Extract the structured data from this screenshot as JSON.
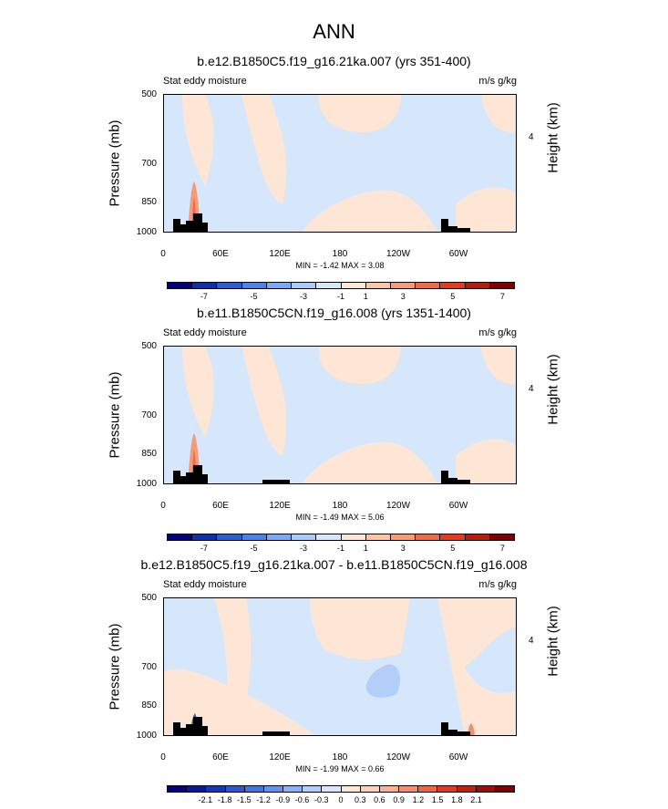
{
  "main_title": "ANN",
  "chart_data": [
    {
      "type": "heatmap",
      "title": "b.e12.B1850C5.f19_g16.21ka.007 (yrs 351-400)",
      "left_subtitle": "Stat eddy moisture",
      "right_subtitle": "m/s g/kg",
      "ylabel": "Pressure (mb)",
      "ylabel_right": "Height (km)",
      "yticks": [
        "500",
        "700",
        "850",
        "1000"
      ],
      "yticks_right": [
        "4"
      ],
      "xticks": [
        "0",
        "60E",
        "120E",
        "180",
        "120W",
        "60W"
      ],
      "stats": "MIN = -1.42  MAX = 3.08",
      "colorbar_labels": [
        "-7",
        "-5",
        "-3",
        "-1",
        "1",
        "3",
        "5",
        "7"
      ],
      "colorbar_colors": [
        "#05007e",
        "#0f2fab",
        "#2d5dd2",
        "#4a83eb",
        "#7aaaf5",
        "#a8cbfb",
        "#d6e6fb",
        "#fde6d6",
        "#fbc5a6",
        "#f79a76",
        "#f06a45",
        "#e23b1d",
        "#b41e0f",
        "#7f0000"
      ]
    },
    {
      "type": "heatmap",
      "title": "b.e11.B1850C5CN.f19_g16.008 (yrs 1351-1400)",
      "left_subtitle": "Stat eddy moisture",
      "right_subtitle": "m/s g/kg",
      "ylabel": "Pressure (mb)",
      "ylabel_right": "Height (km)",
      "yticks": [
        "500",
        "700",
        "850",
        "1000"
      ],
      "yticks_right": [
        "4"
      ],
      "xticks": [
        "0",
        "60E",
        "120E",
        "180",
        "120W",
        "60W"
      ],
      "stats": "MIN = -1.49  MAX = 5.06",
      "colorbar_labels": [
        "-7",
        "-5",
        "-3",
        "-1",
        "1",
        "3",
        "5",
        "7"
      ],
      "colorbar_colors": [
        "#05007e",
        "#0f2fab",
        "#2d5dd2",
        "#4a83eb",
        "#7aaaf5",
        "#a8cbfb",
        "#d6e6fb",
        "#fde6d6",
        "#fbc5a6",
        "#f79a76",
        "#f06a45",
        "#e23b1d",
        "#b41e0f",
        "#7f0000"
      ]
    },
    {
      "type": "heatmap",
      "title": "b.e12.B1850C5.f19_g16.21ka.007 - b.e11.B1850C5CN.f19_g16.008",
      "left_subtitle": "Stat eddy moisture",
      "right_subtitle": "m/s g/kg",
      "ylabel": "Pressure (mb)",
      "ylabel_right": "Height (km)",
      "yticks": [
        "500",
        "700",
        "850",
        "1000"
      ],
      "yticks_right": [
        "4"
      ],
      "xticks": [
        "0",
        "60E",
        "120E",
        "180",
        "120W",
        "60W"
      ],
      "stats": "MIN = -1.99  MAX = 0.66",
      "colorbar_labels": [
        "-2.1",
        "-1.8",
        "-1.5",
        "-1.2",
        "-0.9",
        "-0.6",
        "-0.3",
        "0",
        "0.3",
        "0.6",
        "0.9",
        "1.2",
        "1.5",
        "1.8",
        "2.1"
      ],
      "colorbar_colors": [
        "#05007e",
        "#0a1a9a",
        "#1637bb",
        "#2a57d2",
        "#4275e4",
        "#6393ef",
        "#8ab2f6",
        "#b3cff9",
        "#d6e6fb",
        "#fde6d6",
        "#fcd0b8",
        "#f9b293",
        "#f48e6c",
        "#ec6544",
        "#dc3d21",
        "#c0210f",
        "#9a1007",
        "#7f0000"
      ]
    }
  ]
}
